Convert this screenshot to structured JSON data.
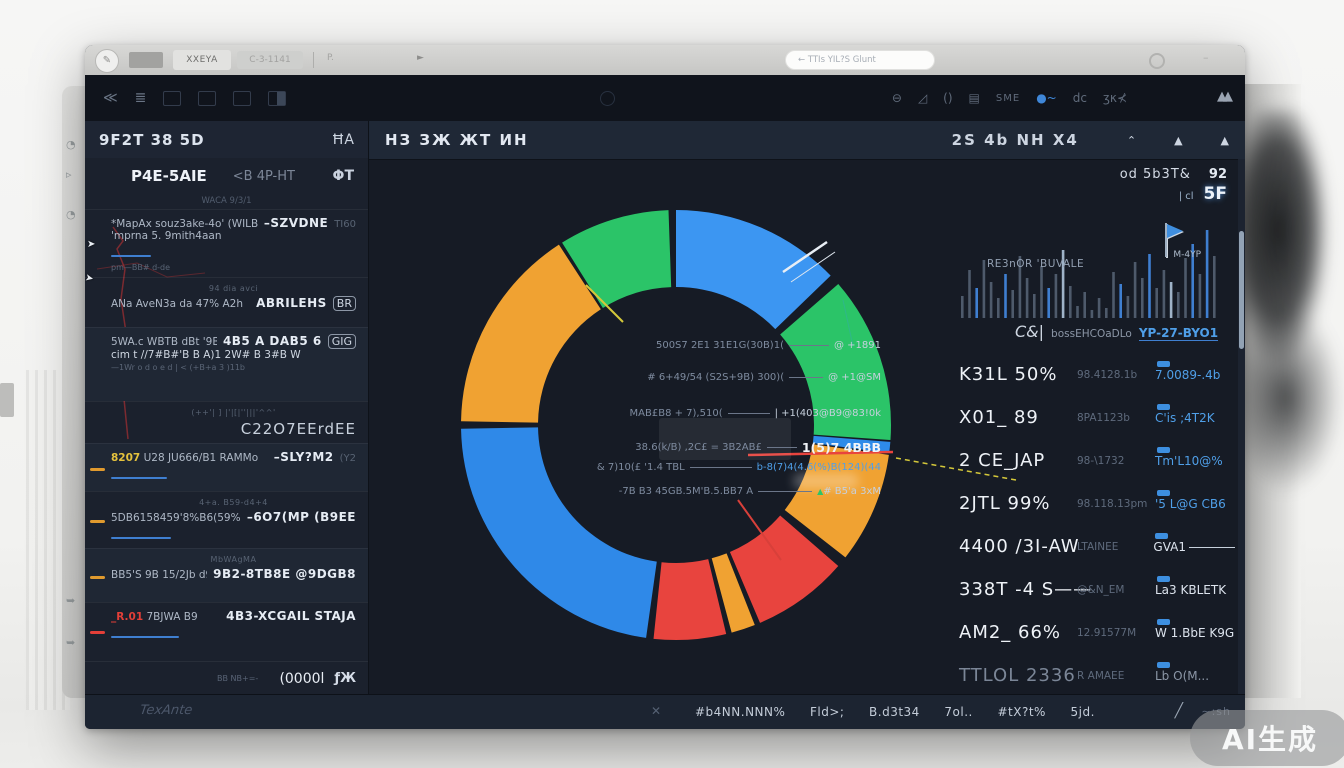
{
  "watermark": "AI生成",
  "chrome": {
    "avatar_glyph": "✎",
    "tab1": "XXEYA",
    "tab2": "C-3-1141",
    "menu_label": "P.",
    "play_glyph": "►",
    "address": "←  TTIs YIL?S Glunt"
  },
  "toolbar": {
    "left_glyph1": "≪",
    "left_glyph2": "≣",
    "right_icons": [
      "⊖",
      "◿",
      "()",
      "▤",
      "SME",
      "dc"
    ],
    "right_blue": "●~",
    "right_scribble": "ʒκ⊀",
    "far_icon": "▲▲"
  },
  "sidebar": {
    "title": "9F2T 38 5D",
    "title_action": "ĦA",
    "tab_active": "P4E-5AIE",
    "tab_inactive": "<B 4P-HT",
    "tab_icon": "ΦT",
    "section_label": "WACA 9/3/1",
    "rows": [
      {
        "alt": false,
        "l1": "*MapAx  souz3ake-4o' (WILBII)..",
        "l1b": "'mprna 5. 9mith4aan",
        "sub": "pm—BB# d-de",
        "r1": "–SZVDNE",
        "r2": "TI60",
        "underline": true,
        "indicator": null,
        "top": null
      },
      {
        "alt": false,
        "top": "94 dia avci",
        "l1": "ANa AveN3a da 47% A2h",
        "r1": "ABRILEHS",
        "badge": "BR",
        "indicator": null
      },
      {
        "alt": true,
        "l1": "5WA.c WBTB dBt '9B BB6 <9b)",
        "r1": "4B5 A DAB5 6",
        "badge": "GIG",
        "l2": "cim t //7#B#'B B A)1 2W# B 3#B W",
        "sub": "—1Wr o      d o e d | <    (+B+a 3 )11b",
        "indicator": null,
        "top": null
      },
      {
        "alt": false,
        "top": "(++'| ] |'|[|''|||'^^'",
        "rbig": "C22O7EErdEE",
        "indicator": null
      },
      {
        "alt": true,
        "l1y": "8207",
        "l1": "U28 JU666/B1 RAMMo",
        "r1": "–SLY?M2",
        "r2": "(Y2",
        "underline": true,
        "indicator": "#e09a2e",
        "top": null
      },
      {
        "alt": false,
        "top": "4+a. B59-d4+4",
        "l1": "5DB6158459'8%B6(59%CK",
        "r1": "–6O7(MP (B9EE",
        "underline": true,
        "indicator": "#e09a2e"
      },
      {
        "alt": true,
        "top": "MbWAgMA",
        "l1": "BB5'S 9B 15/2Jb d9z.",
        "r1": "9B2-8TB8E @9DGB8",
        "indicator": "#e09a2e"
      },
      {
        "alt": false,
        "l1r": "_R.01",
        "l1": "7BJWA B9",
        "r1": "4B3-XCGAIL STAJA",
        "underline": true,
        "indicator": "#e43f38",
        "top": null
      }
    ],
    "footer": {
      "faint": "BB NB+=-",
      "count": "(0000l",
      "icon_label": "ƒЖ"
    }
  },
  "main": {
    "title": "НЗ ЗЖ ЖТ ИН",
    "header_right_title": "2S 4b NH X4",
    "header_icons": [
      "⌃",
      "▲",
      "▲"
    ],
    "annotations": [
      {
        "label": "500S7 2E1 31E1G(30B)1(",
        "value": "@ +1891",
        "lw": 40,
        "cls": ""
      },
      {
        "label": "# 6+49/54 (S2S+9B) 300)(",
        "value": "@ +1@SM",
        "lw": 34,
        "cls": ""
      },
      {
        "label": "MAB£B8 + 7),510(",
        "value": "| +1(403@B9@83!0k",
        "lw": 42,
        "cls": ""
      },
      {
        "label": "38.6(k/B) ,2C£ = 3B2AB£",
        "value": "1(5)7 4BBB",
        "lw": 30,
        "cls": "big"
      },
      {
        "label": "& 7)10(£  '1.4 TBL",
        "value": "b-8(7)4(4.6(%)B(124)(44",
        "lw": 62,
        "cls": "blue"
      },
      {
        "label": "-7B B3 45GB.5M'B.5.BB7 A",
        "value": "# B5'a 3xM",
        "lw": 54,
        "cls": "",
        "green_tri": "▲"
      }
    ]
  },
  "right_panel": {
    "header": "od 5b3T&",
    "header_num": "92",
    "sub_label": "| cl",
    "sub_value": "5F",
    "note": "RE3nOR 'BUVALE",
    "marker_label": "M-4YP",
    "legend_icon": "C&|",
    "legend_text": "bossEHCOaDLo",
    "legend_value": "YP-27-BYO1",
    "stats": [
      {
        "main": "K31L 50%",
        "mid": "98.4128.1b",
        "right": "7.0089-.4b",
        "style": "bl"
      },
      {
        "main": "X01_ 89",
        "mid": "8PA1123b",
        "right": "C'is ;4T2K",
        "style": "bl"
      },
      {
        "main": "2 CE_JAP",
        "mid": "98-\\1732",
        "right": "Tm'L10@%",
        "style": "bl"
      },
      {
        "main": "2JTL 99%",
        "mid": "98.118.13pm",
        "right": "'5 L@G CB6",
        "style": "bl"
      },
      {
        "main": "4400 /3I-AW",
        "mid": "LTAINEE",
        "right": "GVA1",
        "style": "wh",
        "underline": true
      },
      {
        "main": "338T -4 S——",
        "mid": "@&N_EM",
        "right": "La3 KBLETK",
        "style": "wh"
      },
      {
        "main": "AM2_ 66%",
        "mid": "12.91577M",
        "right": "W 1.BbE K9G",
        "style": "wh"
      },
      {
        "main": "TTLOL 2336",
        "mid": "R AMAEE",
        "right": "Lb O(M...",
        "style": "dim",
        "dim": true
      }
    ]
  },
  "bottom_bar": {
    "left_label": "TexAnte",
    "close": "✕",
    "items": [
      "#b4NN.NNN%",
      "Fld>;",
      "B.d3t34",
      "7ol..",
      "#tX?t%",
      "5jd."
    ],
    "slash": "╱",
    "end": "∼:sh"
  },
  "chart_data": [
    {
      "type": "pie",
      "title": "donut allocation chart (center of dashboard)",
      "donut": true,
      "legend_position": "center-overlay",
      "segments": [
        {
          "name": "green-top-left",
          "color": "#2bc468",
          "start_deg": 328,
          "end_deg": 358,
          "approx_pct": 8.3
        },
        {
          "name": "blue-top",
          "color": "#3c96f2",
          "start_deg": 0,
          "end_deg": 46,
          "approx_pct": 12.8
        },
        {
          "name": "green-right",
          "color": "#2bc468",
          "start_deg": 49,
          "end_deg": 94,
          "approx_pct": 12.5
        },
        {
          "name": "blue-sliver-right",
          "color": "#2e8be9",
          "start_deg": 94.5,
          "end_deg": 97.5,
          "approx_pct": 0.8
        },
        {
          "name": "orange-right",
          "color": "#f0a232",
          "start_deg": 98,
          "end_deg": 128,
          "approx_pct": 8.3
        },
        {
          "name": "red-a",
          "color": "#e8443e",
          "start_deg": 131,
          "end_deg": 157,
          "approx_pct": 7.2
        },
        {
          "name": "orange-inner-sliver",
          "color": "#f0a232",
          "start_deg": 158.5,
          "end_deg": 165,
          "approx_pct": 1.8
        },
        {
          "name": "red-b",
          "color": "#e8443e",
          "start_deg": 166.5,
          "end_deg": 186,
          "approx_pct": 5.4
        },
        {
          "name": "blue-bottom-left",
          "color": "#2f89e8",
          "start_deg": 188,
          "end_deg": 269,
          "approx_pct": 22.5
        },
        {
          "name": "orange-left",
          "color": "#f0a232",
          "start_deg": 271,
          "end_deg": 327,
          "approx_pct": 15.6
        }
      ],
      "outer_radius_px": 215,
      "inner_radius_px": 138
    },
    {
      "type": "bar",
      "title": "right-panel activity sparkline",
      "values": [
        22,
        48,
        30,
        58,
        36,
        20,
        44,
        28,
        62,
        40,
        24,
        52,
        30,
        44,
        68,
        32,
        12,
        26,
        8,
        20,
        10,
        46,
        34,
        22,
        56,
        40,
        64,
        30,
        48,
        36,
        26,
        60,
        74,
        44,
        88,
        62
      ],
      "colors": [
        "g",
        "g",
        "b",
        "g",
        "g",
        "g",
        "b",
        "g",
        "g",
        "g",
        "g",
        "g",
        "b",
        "g",
        "l",
        "g",
        "g",
        "g",
        "g",
        "g",
        "g",
        "g",
        "b",
        "g",
        "g",
        "g",
        "b",
        "g",
        "g",
        "l",
        "g",
        "g",
        "b",
        "g",
        "b",
        "g"
      ],
      "color_map": {
        "g": "#4e5a6b",
        "b": "#3f7fd0",
        "l": "#9fb3c8"
      },
      "ylim": [
        0,
        100
      ]
    }
  ],
  "colors": {
    "accent_blue": "#3f8ede",
    "accent_orange": "#f0a232",
    "accent_green": "#2bc468",
    "accent_red": "#e8443e",
    "panel_bg": "#1b212d",
    "main_bg": "#161b25"
  }
}
